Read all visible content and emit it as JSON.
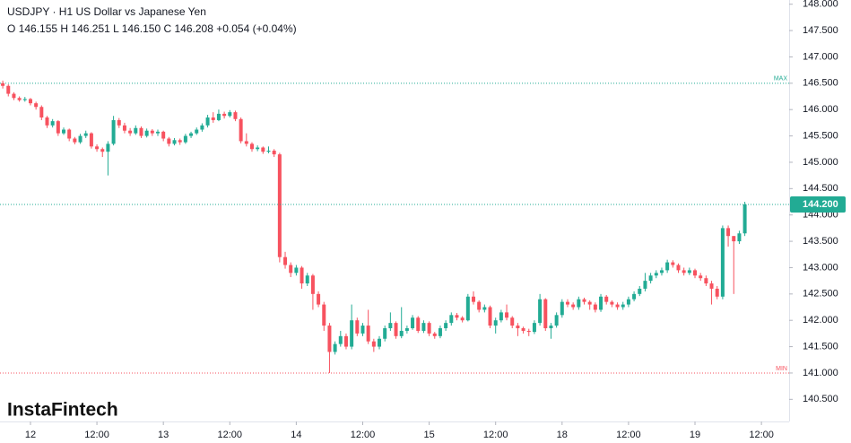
{
  "chart_data": {
    "type": "candlestick",
    "title": "USDJPY · H1 US Dollar vs Japanese Yen",
    "ohlc_header": {
      "o_label": "O",
      "o": "146.155",
      "h_label": "H",
      "h": "146.251",
      "l_label": "L",
      "l": "146.150",
      "c_label": "C",
      "c": "146.208",
      "change": "+0.054 (+0.04%)"
    },
    "watermark": "InstaFintech",
    "up_color": "#22ab94",
    "down_color": "#f7525f",
    "open": [
      146.5,
      146.45,
      146.3,
      146.22,
      146.18,
      146.2,
      146.12,
      146.05,
      145.85,
      145.7,
      145.78,
      145.55,
      145.62,
      145.45,
      145.38,
      145.5,
      145.55,
      145.3,
      145.25,
      145.2,
      145.35,
      145.8,
      145.7,
      145.6,
      145.55,
      145.65,
      145.5,
      145.6,
      145.55,
      145.58,
      145.45,
      145.35,
      145.42,
      145.38,
      145.5,
      145.55,
      145.62,
      145.7,
      145.85,
      145.8,
      145.92,
      145.88,
      145.95,
      145.82,
      145.4,
      145.35,
      145.25,
      145.28,
      145.2,
      145.22,
      145.15,
      143.2,
      143.05,
      142.9,
      143.0,
      142.7,
      142.85,
      142.5,
      142.3,
      141.9,
      141.4,
      141.55,
      141.7,
      141.5,
      142.0,
      141.75,
      141.9,
      141.6,
      141.5,
      141.65,
      141.85,
      141.95,
      141.7,
      141.8,
      141.85,
      142.05,
      141.8,
      141.95,
      141.75,
      141.7,
      141.85,
      141.95,
      142.1,
      142.05,
      142.0,
      142.45,
      142.35,
      142.2,
      142.25,
      141.9,
      142.0,
      142.15,
      142.05,
      141.9,
      141.85,
      141.8,
      141.78,
      141.95,
      142.4,
      141.85,
      141.9,
      142.1,
      142.35,
      142.3,
      142.25,
      142.4,
      142.35,
      142.3,
      142.2,
      142.45,
      142.35,
      142.3,
      142.25,
      142.3,
      142.4,
      142.5,
      142.6,
      142.75,
      142.85,
      142.9,
      142.95,
      143.1,
      143.05,
      142.95,
      142.9,
      142.95,
      142.85,
      142.8,
      142.7,
      142.6,
      142.45,
      143.75,
      143.6,
      143.5,
      143.65
    ],
    "high": [
      146.55,
      146.48,
      146.33,
      146.25,
      146.24,
      146.22,
      146.15,
      146.08,
      145.88,
      145.82,
      145.8,
      145.66,
      145.64,
      145.48,
      145.54,
      145.6,
      145.57,
      145.34,
      145.28,
      145.4,
      145.88,
      145.84,
      145.75,
      145.65,
      145.7,
      145.68,
      145.64,
      145.63,
      145.62,
      145.6,
      145.48,
      145.46,
      145.45,
      145.54,
      145.58,
      145.66,
      145.74,
      145.9,
      145.95,
      146.0,
      145.96,
      145.99,
      145.98,
      145.85,
      145.55,
      145.38,
      145.32,
      145.3,
      145.3,
      145.25,
      145.18,
      143.3,
      143.1,
      143.05,
      143.03,
      142.9,
      142.88,
      142.55,
      142.35,
      141.95,
      141.6,
      141.8,
      141.75,
      142.3,
      142.05,
      141.95,
      142.2,
      141.65,
      141.7,
      141.9,
      142.15,
      141.98,
      142.25,
      141.9,
      142.1,
      142.08,
      142.0,
      141.98,
      141.78,
      141.9,
      142.0,
      142.15,
      142.14,
      142.08,
      142.5,
      142.55,
      142.38,
      142.3,
      142.28,
      142.05,
      142.2,
      142.3,
      142.08,
      141.95,
      141.88,
      141.84,
      142.0,
      142.5,
      142.42,
      141.95,
      142.15,
      142.4,
      142.4,
      142.34,
      142.45,
      142.43,
      142.38,
      142.34,
      142.5,
      142.48,
      142.38,
      142.34,
      142.35,
      142.45,
      142.55,
      142.65,
      142.9,
      142.9,
      142.95,
      143.0,
      143.15,
      143.14,
      143.08,
      143.0,
      143.0,
      142.98,
      142.9,
      142.85,
      142.75,
      142.65,
      143.8,
      143.8,
      143.6,
      143.7,
      144.25
    ],
    "low": [
      146.4,
      146.25,
      146.18,
      146.15,
      146.15,
      146.08,
      146.0,
      145.8,
      145.65,
      145.66,
      145.5,
      145.52,
      145.4,
      145.34,
      145.35,
      145.46,
      145.26,
      145.2,
      145.1,
      144.75,
      145.32,
      145.65,
      145.55,
      145.5,
      145.52,
      145.46,
      145.47,
      145.5,
      145.5,
      145.4,
      145.3,
      145.32,
      145.33,
      145.35,
      145.46,
      145.52,
      145.58,
      145.66,
      145.75,
      145.78,
      145.83,
      145.85,
      145.78,
      145.36,
      145.3,
      145.2,
      145.21,
      145.16,
      145.17,
      145.1,
      143.1,
      142.98,
      142.82,
      142.85,
      142.6,
      142.65,
      142.2,
      142.25,
      141.8,
      141.0,
      141.35,
      141.5,
      141.45,
      141.45,
      141.7,
      141.7,
      141.55,
      141.4,
      141.45,
      141.6,
      141.8,
      141.65,
      141.66,
      141.75,
      141.82,
      141.76,
      141.76,
      141.7,
      141.65,
      141.66,
      141.8,
      141.9,
      142.0,
      141.96,
      141.98,
      142.3,
      142.15,
      142.15,
      141.85,
      141.75,
      141.96,
      142.0,
      141.85,
      141.7,
      141.75,
      141.7,
      141.74,
      141.9,
      141.8,
      141.65,
      141.86,
      142.05,
      142.25,
      142.2,
      142.2,
      142.3,
      142.2,
      142.15,
      142.16,
      142.3,
      142.25,
      142.2,
      142.2,
      142.25,
      142.36,
      142.46,
      142.55,
      142.7,
      142.8,
      142.85,
      142.9,
      143.0,
      142.9,
      142.85,
      142.86,
      142.8,
      142.75,
      142.65,
      142.3,
      142.4,
      142.4,
      143.4,
      142.5,
      143.45,
      143.6
    ],
    "close": [
      146.45,
      146.3,
      146.22,
      146.18,
      146.2,
      146.12,
      146.05,
      145.85,
      145.7,
      145.78,
      145.55,
      145.62,
      145.45,
      145.38,
      145.5,
      145.55,
      145.3,
      145.25,
      145.2,
      145.35,
      145.8,
      145.7,
      145.6,
      145.55,
      145.65,
      145.5,
      145.6,
      145.55,
      145.58,
      145.45,
      145.35,
      145.42,
      145.38,
      145.5,
      145.55,
      145.62,
      145.7,
      145.85,
      145.8,
      145.92,
      145.88,
      145.95,
      145.82,
      145.4,
      145.35,
      145.25,
      145.28,
      145.2,
      145.22,
      145.15,
      143.2,
      143.05,
      142.9,
      143.0,
      142.7,
      142.85,
      142.5,
      142.3,
      141.9,
      141.4,
      141.55,
      141.7,
      141.5,
      142.0,
      141.75,
      141.9,
      141.6,
      141.5,
      141.65,
      141.85,
      141.95,
      141.7,
      141.8,
      141.85,
      142.05,
      141.8,
      141.95,
      141.75,
      141.7,
      141.85,
      141.95,
      142.1,
      142.05,
      142.0,
      142.45,
      142.35,
      142.2,
      142.25,
      141.9,
      142.0,
      142.15,
      142.05,
      141.9,
      141.85,
      141.8,
      141.78,
      141.95,
      142.4,
      141.85,
      141.9,
      142.1,
      142.35,
      142.3,
      142.25,
      142.4,
      142.35,
      142.3,
      142.2,
      142.45,
      142.35,
      142.3,
      142.25,
      142.3,
      142.4,
      142.5,
      142.6,
      142.75,
      142.85,
      142.9,
      142.95,
      143.1,
      143.05,
      142.95,
      142.9,
      142.95,
      142.85,
      142.8,
      142.7,
      142.6,
      142.45,
      143.75,
      143.6,
      143.5,
      143.65,
      144.2
    ],
    "xlim": [
      -0.5,
      142
    ],
    "xticks": [
      {
        "value": 5,
        "label": "12"
      },
      {
        "value": 17,
        "label": "12:00"
      },
      {
        "value": 29,
        "label": "13"
      },
      {
        "value": 41,
        "label": "12:00"
      },
      {
        "value": 53,
        "label": "14"
      },
      {
        "value": 65,
        "label": "12:00"
      },
      {
        "value": 77,
        "label": "15"
      },
      {
        "value": 89,
        "label": "12:00"
      },
      {
        "value": 101,
        "label": "18"
      },
      {
        "value": 113,
        "label": "12:00"
      },
      {
        "value": 125,
        "label": "19"
      },
      {
        "value": 137,
        "label": "12:00"
      }
    ],
    "ylim": [
      140.08,
      148.08
    ],
    "yticks": [
      {
        "value": 140.5,
        "label": "140.500"
      },
      {
        "value": 141,
        "label": "141.000"
      },
      {
        "value": 141.5,
        "label": "141.500"
      },
      {
        "value": 142,
        "label": "142.000"
      },
      {
        "value": 142.5,
        "label": "142.500"
      },
      {
        "value": 143,
        "label": "143.000"
      },
      {
        "value": 143.5,
        "label": "143.500"
      },
      {
        "value": 144,
        "label": "144.000"
      },
      {
        "value": 144.5,
        "label": "144.500"
      },
      {
        "value": 145,
        "label": "145.000"
      },
      {
        "value": 145.5,
        "label": "145.500"
      },
      {
        "value": 146,
        "label": "146.000"
      },
      {
        "value": 146.5,
        "label": "146.500"
      },
      {
        "value": 147,
        "label": "147.000"
      },
      {
        "value": 147.5,
        "label": "147.500"
      },
      {
        "value": 148,
        "label": "148.000"
      }
    ],
    "max_line": {
      "value": 146.5,
      "label": "MAX"
    },
    "min_line": {
      "value": 141,
      "label": "MIN"
    },
    "price_line": {
      "value": 144.2,
      "label": "144.200",
      "color": "#22ab94"
    }
  }
}
